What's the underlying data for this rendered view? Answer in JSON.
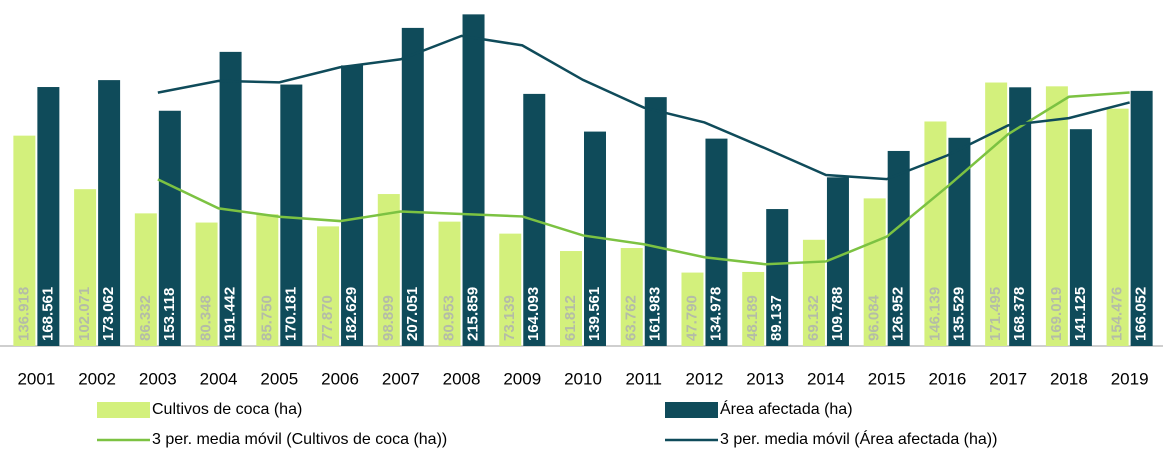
{
  "chart_data": {
    "type": "bar",
    "categories": [
      "2001",
      "2002",
      "2003",
      "2004",
      "2005",
      "2006",
      "2007",
      "2008",
      "2009",
      "2010",
      "2011",
      "2012",
      "2013",
      "2014",
      "2015",
      "2016",
      "2017",
      "2018",
      "2019"
    ],
    "ylim": [
      0,
      220000
    ],
    "series": [
      {
        "name": "Cultivos de coca (ha)",
        "type": "bar",
        "color": "#d3f07c",
        "label_color": "#b4bca7",
        "values": [
          136918,
          102071,
          86332,
          80348,
          85750,
          77870,
          98899,
          80953,
          73139,
          61812,
          63762,
          47790,
          48189,
          69132,
          96084,
          146139,
          171495,
          169019,
          154476
        ],
        "value_labels": [
          "136.918",
          "102.071",
          "86.332",
          "80.348",
          "85.750",
          "77.870",
          "98.899",
          "80.953",
          "73.139",
          "61.812",
          "63.762",
          "47.790",
          "48.189",
          "69.132",
          "96.084",
          "146.139",
          "171.495",
          "169.019",
          "154.476"
        ]
      },
      {
        "name": "Área afectada (ha)",
        "type": "bar",
        "color": "#0f4b5a",
        "label_color": "#ffffff",
        "values": [
          168561,
          173062,
          153118,
          191442,
          170181,
          182629,
          207051,
          215859,
          164093,
          139561,
          161983,
          134978,
          89137,
          109788,
          126952,
          135529,
          168378,
          141125,
          166052
        ],
        "value_labels": [
          "168.561",
          "173.062",
          "153.118",
          "191.442",
          "170.181",
          "182.629",
          "207.051",
          "215.859",
          "164.093",
          "139.561",
          "161.983",
          "134.978",
          "89.137",
          "109.788",
          "126.952",
          "135.529",
          "168.378",
          "141.125",
          "166.052"
        ]
      },
      {
        "name": "3 per. media móvil (Cultivos de coca (ha))",
        "type": "line",
        "color": "#7cc242",
        "values": [
          null,
          null,
          108440,
          89584,
          84143,
          81323,
          87506,
          85907,
          84330,
          71968,
          66238,
          57788,
          53247,
          55037,
          71135,
          103785,
          137906,
          162218,
          164997
        ]
      },
      {
        "name": "3 per. media móvil (Área afectada (ha))",
        "type": "line",
        "color": "#0f4b5a",
        "values": [
          null,
          null,
          164914,
          172541,
          171580,
          181417,
          186620,
          201846,
          195668,
          173171,
          155212,
          145507,
          128699,
          111301,
          108626,
          124090,
          143620,
          148344,
          158518
        ]
      }
    ]
  }
}
